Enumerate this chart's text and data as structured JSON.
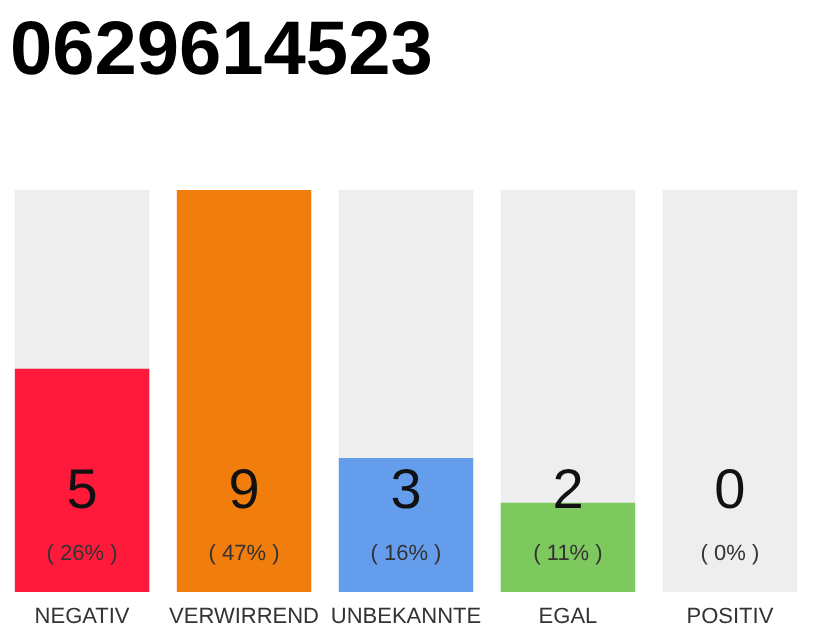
{
  "chart_data": {
    "type": "bar",
    "title": "0629614523",
    "categories": [
      "NEGATIV",
      "VERWIRREND",
      "UNBEKANNTE",
      "EGAL",
      "POSITIV"
    ],
    "values": [
      5,
      9,
      3,
      2,
      0
    ],
    "colors": [
      "#ff1a3c",
      "#f07d0c",
      "#659ded",
      "#7dc95e",
      "#2aa84a"
    ],
    "ylim": [
      0,
      9
    ],
    "data_labels": true,
    "tick_labels": "x",
    "bands": [
      {
        "axis": "x",
        "from": "NEGATIV",
        "to": "NEGATIV",
        "color": "#eeeeee"
      },
      {
        "axis": "x",
        "from": "UNBEKANNTE",
        "to": "UNBEKANNTE",
        "color": "#eeeeee"
      },
      {
        "axis": "x",
        "from": "EGAL",
        "to": "EGAL",
        "color": "#eeeeee"
      },
      {
        "axis": "x",
        "from": "POSITIV",
        "to": "POSITIV",
        "color": "#eeeeee"
      }
    ],
    "annotations": [
      "( 26% )",
      "( 47% )",
      "( 16% )",
      "( 11% )",
      "( 0% )"
    ]
  }
}
